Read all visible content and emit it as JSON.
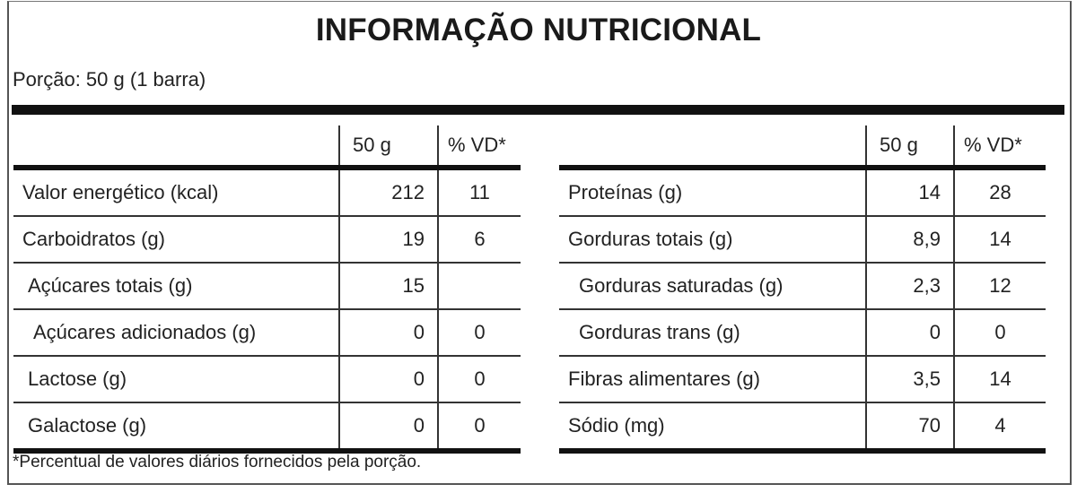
{
  "title": "INFORMAÇÃO NUTRICIONAL",
  "portion": "Porção: 50 g (1 barra)",
  "columns": {
    "amount": "50 g",
    "dv": "% VD*"
  },
  "left_rows": [
    {
      "name": "Valor energético (kcal)",
      "amount": "212",
      "dv": "11",
      "indent": 0
    },
    {
      "name": "Carboidratos (g)",
      "amount": "19",
      "dv": "6",
      "indent": 0
    },
    {
      "name": "Açúcares totais (g)",
      "amount": "15",
      "dv": "",
      "indent": 1
    },
    {
      "name": "Açúcares adicionados (g)",
      "amount": "0",
      "dv": "0",
      "indent": 2
    },
    {
      "name": "Lactose (g)",
      "amount": "0",
      "dv": "0",
      "indent": 1
    },
    {
      "name": "Galactose (g)",
      "amount": "0",
      "dv": "0",
      "indent": 1
    }
  ],
  "right_rows": [
    {
      "name": "Proteínas (g)",
      "amount": "14",
      "dv": "28",
      "indent": 0
    },
    {
      "name": "Gorduras totais (g)",
      "amount": "8,9",
      "dv": "14",
      "indent": 0
    },
    {
      "name": "Gorduras saturadas (g)",
      "amount": "2,3",
      "dv": "12",
      "indent": 2
    },
    {
      "name": "Gorduras trans (g)",
      "amount": "0",
      "dv": "0",
      "indent": 2
    },
    {
      "name": "Fibras alimentares (g)",
      "amount": "3,5",
      "dv": "14",
      "indent": 0
    },
    {
      "name": "Sódio (mg)",
      "amount": "70",
      "dv": "4",
      "indent": 0
    }
  ],
  "footnote": "*Percentual de valores diários fornecidos pela porção."
}
